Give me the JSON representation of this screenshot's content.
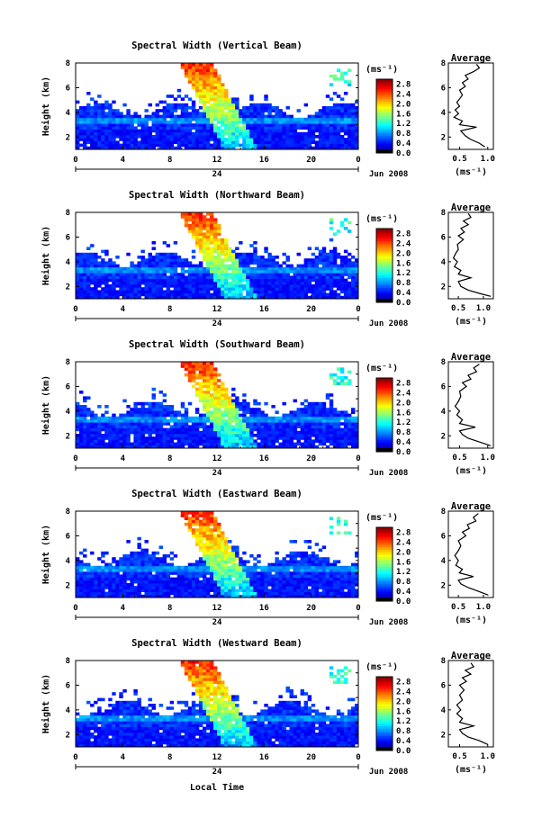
{
  "figure": {
    "xlabel": "Local Time",
    "date_label": "Jun 2008",
    "day_label": "24",
    "ylabel": "Height (km)",
    "avg_title": "Average",
    "unit_label": "(ms⁻¹)"
  },
  "chart_data": [
    {
      "type": "heatmap",
      "title": "Spectral Width (Vertical Beam)",
      "xlabel": "",
      "ylabel": "Height (km)",
      "xticks": [
        "0",
        "4",
        "8",
        "12",
        "16",
        "20",
        "0"
      ],
      "xlim": [
        0,
        24
      ],
      "yticks": [
        "2",
        "4",
        "6",
        "8"
      ],
      "ylim": [
        1,
        8
      ],
      "colorbar": {
        "unit": "(ms⁻¹)",
        "ticks": [
          "0.0",
          "0.4",
          "0.8",
          "1.2",
          "1.6",
          "2.0",
          "2.4",
          "2.8"
        ],
        "range": [
          0,
          3.0
        ]
      },
      "average": {
        "title": "Average",
        "xlabel": "(ms⁻¹)",
        "xticks": [
          "0.5",
          "1.0"
        ],
        "xlim": [
          0.3,
          1.1
        ],
        "yticks": [
          "2",
          "4",
          "6",
          "8"
        ],
        "ylim": [
          1,
          8
        ],
        "profile": [
          [
            0.95,
            1.2
          ],
          [
            0.85,
            1.5
          ],
          [
            0.7,
            1.8
          ],
          [
            0.6,
            2.1
          ],
          [
            0.52,
            2.5
          ],
          [
            0.8,
            2.8
          ],
          [
            0.5,
            3.0
          ],
          [
            0.55,
            3.3
          ],
          [
            0.4,
            3.6
          ],
          [
            0.48,
            3.9
          ],
          [
            0.42,
            4.2
          ],
          [
            0.5,
            4.5
          ],
          [
            0.45,
            4.8
          ],
          [
            0.5,
            5.1
          ],
          [
            0.55,
            5.4
          ],
          [
            0.5,
            5.8
          ],
          [
            0.6,
            6.1
          ],
          [
            0.55,
            6.4
          ],
          [
            0.65,
            6.7
          ],
          [
            0.6,
            7.0
          ],
          [
            0.75,
            7.3
          ],
          [
            0.85,
            7.6
          ],
          [
            0.8,
            7.9
          ]
        ]
      }
    },
    {
      "type": "heatmap",
      "title": "Spectral Width (Northward Beam)",
      "xlabel": "",
      "ylabel": "Height (km)",
      "xticks": [
        "0",
        "4",
        "8",
        "12",
        "16",
        "20",
        "0"
      ],
      "xlim": [
        0,
        24
      ],
      "yticks": [
        "2",
        "4",
        "6",
        "8"
      ],
      "ylim": [
        1,
        8
      ],
      "colorbar": {
        "unit": "(ms⁻¹)",
        "ticks": [
          "0.0",
          "0.4",
          "0.8",
          "1.2",
          "1.6",
          "2.0",
          "2.4",
          "2.8"
        ],
        "range": [
          0,
          3.0
        ]
      },
      "average": {
        "title": "Average",
        "xlabel": "(ms⁻¹)",
        "xticks": [
          "0.5",
          "1.0"
        ],
        "xlim": [
          0.3,
          1.2
        ],
        "yticks": [
          "2",
          "4",
          "6",
          "8"
        ],
        "ylim": [
          1,
          8
        ],
        "profile": [
          [
            1.15,
            1.2
          ],
          [
            0.95,
            1.4
          ],
          [
            0.7,
            1.7
          ],
          [
            0.55,
            2.0
          ],
          [
            0.5,
            2.4
          ],
          [
            0.75,
            2.7
          ],
          [
            0.5,
            3.0
          ],
          [
            0.55,
            3.3
          ],
          [
            0.42,
            3.6
          ],
          [
            0.48,
            4.0
          ],
          [
            0.4,
            4.3
          ],
          [
            0.45,
            4.7
          ],
          [
            0.5,
            5.0
          ],
          [
            0.48,
            5.4
          ],
          [
            0.6,
            5.8
          ],
          [
            0.5,
            6.1
          ],
          [
            0.62,
            6.4
          ],
          [
            0.55,
            6.7
          ],
          [
            0.7,
            7.0
          ],
          [
            0.6,
            7.3
          ],
          [
            0.75,
            7.6
          ],
          [
            0.7,
            7.9
          ]
        ]
      }
    },
    {
      "type": "heatmap",
      "title": "Spectral Width (Southward Beam)",
      "xlabel": "",
      "ylabel": "Height (km)",
      "xticks": [
        "0",
        "4",
        "8",
        "12",
        "16",
        "20",
        "0"
      ],
      "xlim": [
        0,
        24
      ],
      "yticks": [
        "2",
        "4",
        "6",
        "8"
      ],
      "ylim": [
        1,
        8
      ],
      "colorbar": {
        "unit": "(ms⁻¹)",
        "ticks": [
          "0.0",
          "0.4",
          "0.8",
          "1.2",
          "1.6",
          "2.0",
          "2.4",
          "2.8"
        ],
        "range": [
          0,
          3.0
        ]
      },
      "average": {
        "title": "Average",
        "xlabel": "(ms⁻¹)",
        "xticks": [
          "0.5",
          "1.0"
        ],
        "xlim": [
          0.3,
          1.1
        ],
        "yticks": [
          "2",
          "4",
          "6",
          "8"
        ],
        "ylim": [
          1,
          8
        ],
        "profile": [
          [
            1.05,
            1.2
          ],
          [
            0.85,
            1.5
          ],
          [
            0.65,
            1.8
          ],
          [
            0.55,
            2.1
          ],
          [
            0.5,
            2.4
          ],
          [
            0.78,
            2.7
          ],
          [
            0.5,
            3.0
          ],
          [
            0.55,
            3.3
          ],
          [
            0.45,
            3.7
          ],
          [
            0.5,
            4.0
          ],
          [
            0.42,
            4.4
          ],
          [
            0.48,
            4.8
          ],
          [
            0.52,
            5.2
          ],
          [
            0.5,
            5.6
          ],
          [
            0.62,
            6.0
          ],
          [
            0.55,
            6.3
          ],
          [
            0.7,
            6.6
          ],
          [
            0.65,
            6.9
          ],
          [
            0.8,
            7.2
          ],
          [
            0.75,
            7.5
          ],
          [
            0.85,
            7.8
          ]
        ]
      }
    },
    {
      "type": "heatmap",
      "title": "Spectral Width (Eastward Beam)",
      "xlabel": "",
      "ylabel": "Height (km)",
      "xticks": [
        "0",
        "4",
        "8",
        "12",
        "16",
        "20",
        "0"
      ],
      "xlim": [
        0,
        24
      ],
      "yticks": [
        "2",
        "4",
        "6",
        "8"
      ],
      "ylim": [
        1,
        8
      ],
      "colorbar": {
        "unit": "(ms⁻¹)",
        "ticks": [
          "0.0",
          "0.4",
          "0.8",
          "1.2",
          "1.6",
          "2.0",
          "2.4",
          "2.8"
        ],
        "range": [
          0,
          3.0
        ]
      },
      "average": {
        "title": "Average",
        "xlabel": "(ms⁻¹)",
        "xticks": [
          "0.5",
          "1.0"
        ],
        "xlim": [
          0.3,
          1.2
        ],
        "yticks": [
          "2",
          "4",
          "6",
          "8"
        ],
        "ylim": [
          1,
          8
        ],
        "profile": [
          [
            1.1,
            1.2
          ],
          [
            0.9,
            1.5
          ],
          [
            0.7,
            1.8
          ],
          [
            0.55,
            2.1
          ],
          [
            0.5,
            2.4
          ],
          [
            0.8,
            2.7
          ],
          [
            0.52,
            3.0
          ],
          [
            0.58,
            3.3
          ],
          [
            0.45,
            3.6
          ],
          [
            0.5,
            4.0
          ],
          [
            0.43,
            4.4
          ],
          [
            0.5,
            4.8
          ],
          [
            0.55,
            5.2
          ],
          [
            0.5,
            5.6
          ],
          [
            0.65,
            6.0
          ],
          [
            0.58,
            6.3
          ],
          [
            0.72,
            6.6
          ],
          [
            0.68,
            6.9
          ],
          [
            0.85,
            7.2
          ],
          [
            0.8,
            7.5
          ],
          [
            0.9,
            7.8
          ]
        ]
      }
    },
    {
      "type": "heatmap",
      "title": "Spectral Width (Westward Beam)",
      "xlabel": "Local Time",
      "ylabel": "Height (km)",
      "xticks": [
        "0",
        "4",
        "8",
        "12",
        "16",
        "20",
        "0"
      ],
      "xlim": [
        0,
        24
      ],
      "yticks": [
        "2",
        "4",
        "6",
        "8"
      ],
      "ylim": [
        1,
        8
      ],
      "colorbar": {
        "unit": "(ms⁻¹)",
        "ticks": [
          "0.0",
          "0.4",
          "0.8",
          "1.2",
          "1.6",
          "2.0",
          "2.4",
          "2.8"
        ],
        "range": [
          0,
          3.0
        ]
      },
      "average": {
        "title": "Average",
        "xlabel": "(ms⁻¹)",
        "xticks": [
          "0.5",
          "1.0"
        ],
        "xlim": [
          0.3,
          1.1
        ],
        "yticks": [
          "2",
          "4",
          "6",
          "8"
        ],
        "ylim": [
          1,
          8
        ],
        "profile": [
          [
            1.0,
            1.2
          ],
          [
            0.85,
            1.5
          ],
          [
            0.65,
            1.8
          ],
          [
            0.55,
            2.1
          ],
          [
            0.5,
            2.4
          ],
          [
            0.75,
            2.7
          ],
          [
            0.5,
            3.0
          ],
          [
            0.55,
            3.3
          ],
          [
            0.45,
            3.7
          ],
          [
            0.52,
            4.0
          ],
          [
            0.45,
            4.4
          ],
          [
            0.55,
            4.8
          ],
          [
            0.5,
            5.2
          ],
          [
            0.58,
            5.6
          ],
          [
            0.5,
            6.0
          ],
          [
            0.62,
            6.3
          ],
          [
            0.55,
            6.6
          ],
          [
            0.7,
            6.9
          ],
          [
            0.6,
            7.2
          ],
          [
            0.75,
            7.5
          ],
          [
            0.7,
            7.8
          ]
        ]
      }
    }
  ]
}
